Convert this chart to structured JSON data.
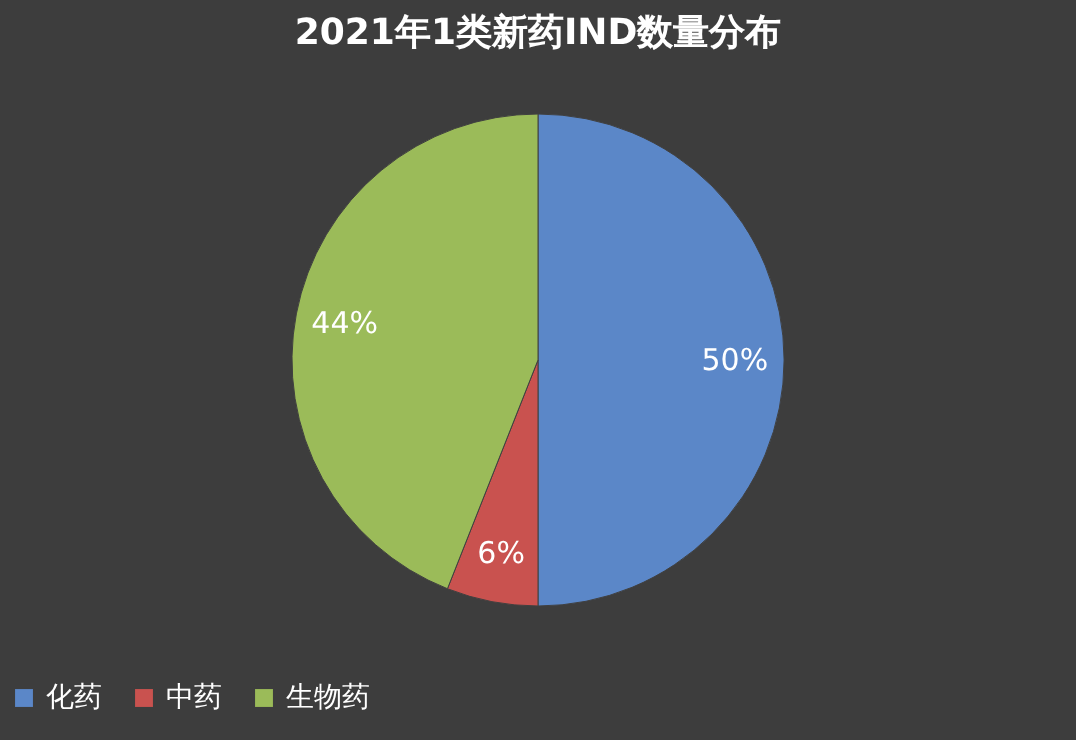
{
  "chart_data": {
    "type": "pie",
    "title": "2021年1类新药IND数量分布",
    "categories": [
      "化药",
      "中药",
      "生物药"
    ],
    "values": [
      50,
      6,
      44
    ],
    "colors": [
      "#5b87c8",
      "#c9524f",
      "#9bbb59"
    ],
    "value_labels": [
      "50%",
      "6%",
      "44%"
    ],
    "legend": "bottom"
  }
}
